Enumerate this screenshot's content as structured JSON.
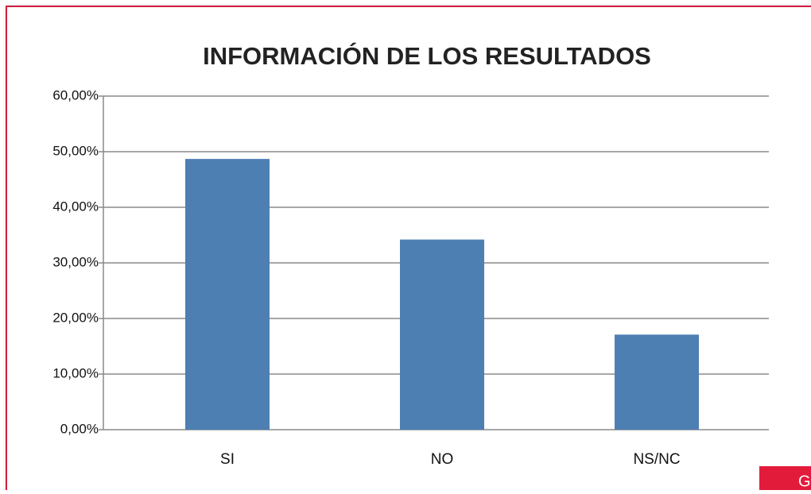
{
  "chart_data": {
    "type": "bar",
    "title": "INFORMACIÓN DE LOS RESULTADOS",
    "categories": [
      "SI",
      "NO",
      "NS/NC"
    ],
    "values": [
      48.7,
      34.2,
      17.1
    ],
    "color": "#4e7fb3",
    "ylim": [
      0,
      60
    ],
    "yticks": [
      {
        "value": 0,
        "label": "0,00%"
      },
      {
        "value": 10,
        "label": "10,00%"
      },
      {
        "value": 20,
        "label": "20,00%"
      },
      {
        "value": 30,
        "label": "30,00%"
      },
      {
        "value": 40,
        "label": "40,00%"
      },
      {
        "value": 50,
        "label": "50,00%"
      },
      {
        "value": 60,
        "label": "60,00%"
      }
    ],
    "grid": true
  },
  "tab": "G"
}
